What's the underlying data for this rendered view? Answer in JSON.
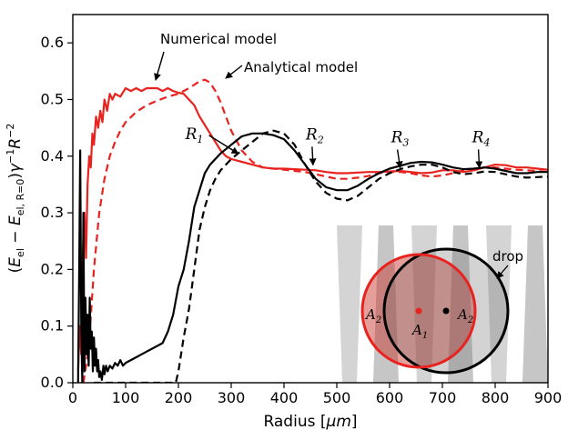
{
  "chart_data": {
    "type": "line",
    "xlabel": "Radius [μm]",
    "ylabel": "(E_el − E_el,R=0) γ^−1 R^−2",
    "xlim": [
      0,
      900
    ],
    "ylim": [
      0,
      0.65
    ],
    "xticks": [
      0,
      100,
      200,
      300,
      400,
      500,
      600,
      700,
      800,
      900
    ],
    "yticks": [
      0.0,
      0.1,
      0.2,
      0.3,
      0.4,
      0.5,
      0.6
    ],
    "colors": {
      "red": "#e8231f",
      "black": "#000000"
    },
    "series": [
      {
        "name": "Numerical model",
        "color": "#e8231f",
        "dash": "solid",
        "x": [
          10,
          13,
          16,
          19,
          22,
          25,
          28,
          31,
          34,
          37,
          40,
          44,
          48,
          52,
          56,
          60,
          65,
          70,
          75,
          80,
          90,
          100,
          110,
          120,
          130,
          140,
          150,
          160,
          170,
          180,
          190,
          200,
          210,
          220,
          230,
          240,
          250,
          260,
          270,
          280,
          290,
          300,
          320,
          340,
          360,
          380,
          400,
          420,
          440,
          460,
          480,
          500,
          520,
          540,
          560,
          580,
          600,
          620,
          640,
          660,
          680,
          700,
          720,
          740,
          760,
          780,
          800,
          820,
          840,
          860,
          880,
          900
        ],
        "y": [
          0.02,
          0.1,
          0.05,
          0.23,
          0.3,
          0.22,
          0.35,
          0.4,
          0.38,
          0.44,
          0.42,
          0.47,
          0.45,
          0.48,
          0.46,
          0.5,
          0.48,
          0.51,
          0.5,
          0.51,
          0.505,
          0.52,
          0.515,
          0.52,
          0.515,
          0.52,
          0.52,
          0.52,
          0.515,
          0.52,
          0.515,
          0.512,
          0.51,
          0.5,
          0.49,
          0.47,
          0.455,
          0.44,
          0.425,
          0.41,
          0.4,
          0.395,
          0.39,
          0.385,
          0.38,
          0.378,
          0.378,
          0.377,
          0.376,
          0.375,
          0.372,
          0.37,
          0.37,
          0.371,
          0.372,
          0.372,
          0.373,
          0.374,
          0.372,
          0.37,
          0.371,
          0.375,
          0.375,
          0.372,
          0.375,
          0.38,
          0.385,
          0.384,
          0.38,
          0.38,
          0.378,
          0.376
        ]
      },
      {
        "name": "Analytical model",
        "color": "#e8231f",
        "dash": "dashed",
        "x": [
          20,
          30,
          40,
          50,
          60,
          70,
          80,
          90,
          100,
          120,
          140,
          160,
          180,
          200,
          220,
          240,
          250,
          260,
          270,
          280,
          290,
          300,
          320,
          340,
          360,
          380,
          400,
          420,
          440,
          460,
          480,
          500,
          520,
          540,
          560,
          580,
          600,
          620,
          640,
          660,
          680,
          700,
          720,
          740,
          760,
          780,
          800,
          820,
          840,
          860,
          880,
          900
        ],
        "y": [
          0.0,
          0.06,
          0.2,
          0.3,
          0.36,
          0.4,
          0.425,
          0.445,
          0.46,
          0.478,
          0.49,
          0.498,
          0.505,
          0.51,
          0.52,
          0.532,
          0.535,
          0.53,
          0.515,
          0.495,
          0.47,
          0.445,
          0.41,
          0.39,
          0.38,
          0.378,
          0.376,
          0.374,
          0.372,
          0.368,
          0.364,
          0.36,
          0.36,
          0.362,
          0.365,
          0.37,
          0.372,
          0.372,
          0.37,
          0.366,
          0.364,
          0.366,
          0.37,
          0.375,
          0.378,
          0.38,
          0.38,
          0.378,
          0.376,
          0.375,
          0.374,
          0.372
        ]
      },
      {
        "name": "",
        "color": "#000000",
        "dash": "solid",
        "x": [
          10,
          12,
          14,
          16,
          18,
          20,
          22,
          24,
          26,
          28,
          30,
          32,
          34,
          36,
          38,
          40,
          42,
          44,
          46,
          48,
          50,
          52,
          55,
          58,
          60,
          63,
          66,
          70,
          75,
          80,
          85,
          90,
          95,
          100,
          110,
          120,
          130,
          140,
          150,
          160,
          170,
          180,
          190,
          200,
          210,
          220,
          230,
          240,
          250,
          260,
          270,
          280,
          300,
          320,
          340,
          360,
          380,
          400,
          420,
          440,
          460,
          480,
          500,
          520,
          540,
          560,
          580,
          600,
          620,
          640,
          660,
          680,
          700,
          720,
          740,
          760,
          780,
          800,
          820,
          840,
          860,
          880,
          900
        ],
        "y": [
          0.0,
          0.2,
          0.41,
          0.1,
          0.0,
          0.3,
          0.02,
          0.15,
          0.05,
          0.12,
          0.03,
          0.15,
          0.06,
          0.09,
          0.02,
          0.08,
          0.03,
          0.06,
          0.02,
          0.04,
          0.01,
          0.02,
          0.005,
          0.03,
          0.015,
          0.03,
          0.02,
          0.03,
          0.025,
          0.035,
          0.03,
          0.04,
          0.03,
          0.035,
          0.04,
          0.045,
          0.05,
          0.055,
          0.06,
          0.065,
          0.07,
          0.09,
          0.12,
          0.17,
          0.2,
          0.25,
          0.31,
          0.34,
          0.37,
          0.385,
          0.395,
          0.405,
          0.42,
          0.435,
          0.44,
          0.44,
          0.437,
          0.43,
          0.41,
          0.385,
          0.36,
          0.345,
          0.34,
          0.34,
          0.348,
          0.36,
          0.37,
          0.378,
          0.383,
          0.388,
          0.39,
          0.389,
          0.385,
          0.38,
          0.377,
          0.378,
          0.38,
          0.378,
          0.374,
          0.37,
          0.37,
          0.372,
          0.372
        ]
      },
      {
        "name": "",
        "color": "#000000",
        "dash": "dashed",
        "x": [
          40,
          60,
          100,
          150,
          195,
          200,
          205,
          210,
          220,
          230,
          240,
          250,
          260,
          270,
          280,
          290,
          300,
          320,
          340,
          360,
          380,
          400,
          420,
          440,
          460,
          480,
          500,
          520,
          540,
          560,
          580,
          600,
          620,
          640,
          660,
          680,
          700,
          720,
          740,
          760,
          780,
          800,
          820,
          840,
          860,
          880,
          900
        ],
        "y": [
          0.0,
          0.0,
          0.0,
          0.0,
          0.0,
          0.02,
          0.05,
          0.08,
          0.13,
          0.2,
          0.27,
          0.31,
          0.34,
          0.36,
          0.375,
          0.385,
          0.395,
          0.41,
          0.425,
          0.44,
          0.445,
          0.44,
          0.42,
          0.385,
          0.355,
          0.335,
          0.325,
          0.322,
          0.33,
          0.345,
          0.36,
          0.37,
          0.377,
          0.382,
          0.385,
          0.385,
          0.38,
          0.372,
          0.368,
          0.37,
          0.373,
          0.372,
          0.368,
          0.364,
          0.362,
          0.363,
          0.364
        ]
      }
    ],
    "annotations": {
      "numerical": "Numerical model",
      "analytical": "Analytical model",
      "r_labels": [
        "R",
        "R",
        "R",
        "R"
      ],
      "r_subs": [
        "1",
        "2",
        "3",
        "4"
      ],
      "r_x": [
        320,
        455,
        620,
        770
      ],
      "r_y": [
        0.395,
        0.375,
        0.37,
        0.37
      ]
    },
    "inset": {
      "drop_label": "drop",
      "a1": "A",
      "a1_sub": "1",
      "a2": "A",
      "a2_sub": "2"
    }
  }
}
